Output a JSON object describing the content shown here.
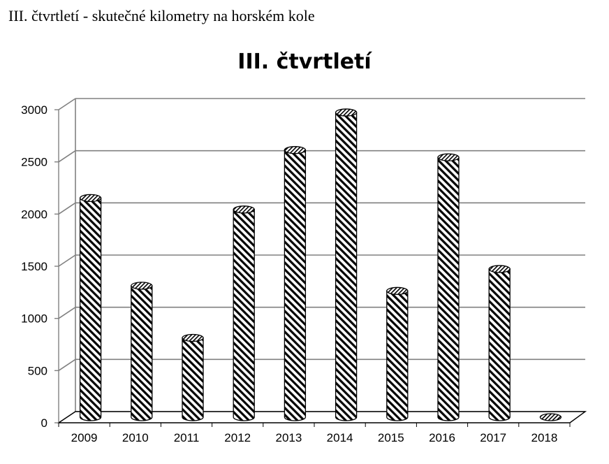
{
  "page": {
    "heading": "III. čtvrtletí - skutečné kilometry na horském kole"
  },
  "chart_data": {
    "type": "bar",
    "style": "3d-cylinder, diagonal hatch fill",
    "title": "III. čtvrtletí",
    "xlabel": "",
    "ylabel": "",
    "categories": [
      "2009",
      "2010",
      "2011",
      "2012",
      "2013",
      "2014",
      "2015",
      "2016",
      "2017",
      "2018"
    ],
    "values": [
      2100,
      1260,
      760,
      1990,
      2560,
      2920,
      1210,
      2490,
      1420,
      0
    ],
    "ylim": [
      0,
      3000
    ],
    "yticks": [
      "0",
      "500",
      "1000",
      "1500",
      "2000",
      "2500",
      "3000"
    ],
    "grid": true,
    "legend": "none",
    "colors": {
      "bar_stroke": "#000000",
      "bar_fill": "#ffffff",
      "grid": "#808080"
    }
  }
}
